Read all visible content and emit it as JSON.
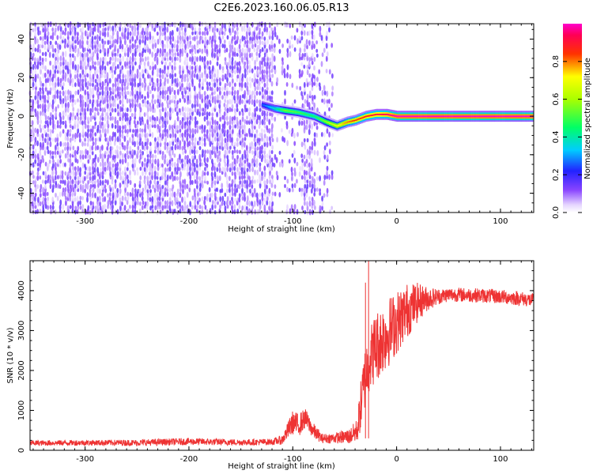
{
  "title": "C2E6.2023.160.06.05.R13",
  "chart_data": [
    {
      "type": "heatmap",
      "xlabel": "Height of straight line (km)",
      "ylabel": "Frequency (Hz)",
      "xlim": [
        -353,
        132
      ],
      "ylim": [
        -50,
        48
      ],
      "xticks": [
        -300,
        -200,
        -100,
        0,
        100
      ],
      "yticks": [
        -40,
        -20,
        0,
        20,
        40
      ],
      "colorbar": {
        "label": "Normalized spectral amplitude",
        "range": [
          0,
          1
        ],
        "ticks": [
          "0.0",
          "0.2",
          "0.4",
          "0.6",
          "0.8"
        ],
        "tick_values": [
          0.0,
          0.2,
          0.4,
          0.6,
          0.8
        ],
        "colormap": "rainbow (white, purple, blue, cyan, green, yellow, red, magenta)"
      },
      "noise_region": {
        "x_range": [
          -353,
          -62
        ],
        "amplitude": "low (0.0–0.15)"
      },
      "ridge": [
        {
          "x": -130,
          "freq": 6,
          "amp": 0.25
        },
        {
          "x": -118,
          "freq": 4,
          "amp": 0.38
        },
        {
          "x": -108,
          "freq": 3,
          "amp": 0.55
        },
        {
          "x": -95,
          "freq": 2,
          "amp": 0.5
        },
        {
          "x": -80,
          "freq": 0,
          "amp": 0.45
        },
        {
          "x": -68,
          "freq": -3,
          "amp": 0.6
        },
        {
          "x": -58,
          "freq": -5,
          "amp": 0.7
        },
        {
          "x": -48,
          "freq": -3,
          "amp": 0.8
        },
        {
          "x": -40,
          "freq": -2,
          "amp": 0.85
        },
        {
          "x": -30,
          "freq": 0,
          "amp": 0.88
        },
        {
          "x": -20,
          "freq": 1,
          "amp": 0.92
        },
        {
          "x": -10,
          "freq": 1,
          "amp": 0.95
        },
        {
          "x": 0,
          "freq": 0,
          "amp": 1.0
        },
        {
          "x": 132,
          "freq": 0,
          "amp": 1.0
        }
      ],
      "grid": false
    },
    {
      "type": "line",
      "xlabel": "Height of straight line (km)",
      "ylabel": "SNR (10 * v/v)",
      "xlim": [
        -353,
        132
      ],
      "ylim": [
        0,
        4750
      ],
      "xticks": [
        -300,
        -200,
        -100,
        0,
        100
      ],
      "yticks": [
        0,
        1000,
        2000,
        3000,
        4000
      ],
      "color": "#ee3333",
      "series": [
        {
          "x": [
            -353,
            -300,
            -250,
            -200,
            -150,
            -120,
            -110,
            -100,
            -95,
            -88,
            -80,
            -72,
            -65,
            -55,
            -45,
            -38,
            -34,
            -30,
            -26,
            -20,
            -10,
            0,
            10,
            20,
            30,
            40,
            50,
            60,
            80,
            100,
            120,
            132
          ],
          "y": [
            180,
            190,
            190,
            220,
            200,
            210,
            260,
            700,
            620,
            800,
            480,
            300,
            300,
            320,
            350,
            500,
            1200,
            1900,
            2300,
            2600,
            2900,
            3200,
            3500,
            3700,
            3800,
            3850,
            3900,
            3900,
            3880,
            3850,
            3800,
            3750
          ],
          "band": [
            [
              -353,
              70
            ],
            [
              -300,
              70
            ],
            [
              -250,
              80
            ],
            [
              -200,
              90
            ],
            [
              -150,
              80
            ],
            [
              -120,
              80
            ],
            [
              -110,
              120
            ],
            [
              -100,
              300
            ],
            [
              -95,
              300
            ],
            [
              -88,
              250
            ],
            [
              -80,
              200
            ],
            [
              -72,
              120
            ],
            [
              -65,
              120
            ],
            [
              -55,
              150
            ],
            [
              -45,
              200
            ],
            [
              -38,
              300
            ],
            [
              -34,
              700
            ],
            [
              -30,
              800
            ],
            [
              -26,
              800
            ],
            [
              -20,
              900
            ],
            [
              -10,
              900
            ],
            [
              0,
              800
            ],
            [
              10,
              700
            ],
            [
              20,
              500
            ],
            [
              30,
              300
            ],
            [
              40,
              200
            ],
            [
              50,
              180
            ],
            [
              60,
              180
            ],
            [
              80,
              180
            ],
            [
              100,
              180
            ],
            [
              120,
              180
            ],
            [
              132,
              180
            ]
          ]
        }
      ],
      "spikes": [
        {
          "x": -27,
          "y": 4750
        },
        {
          "x": -30,
          "y": 4200
        }
      ],
      "grid": false
    }
  ]
}
